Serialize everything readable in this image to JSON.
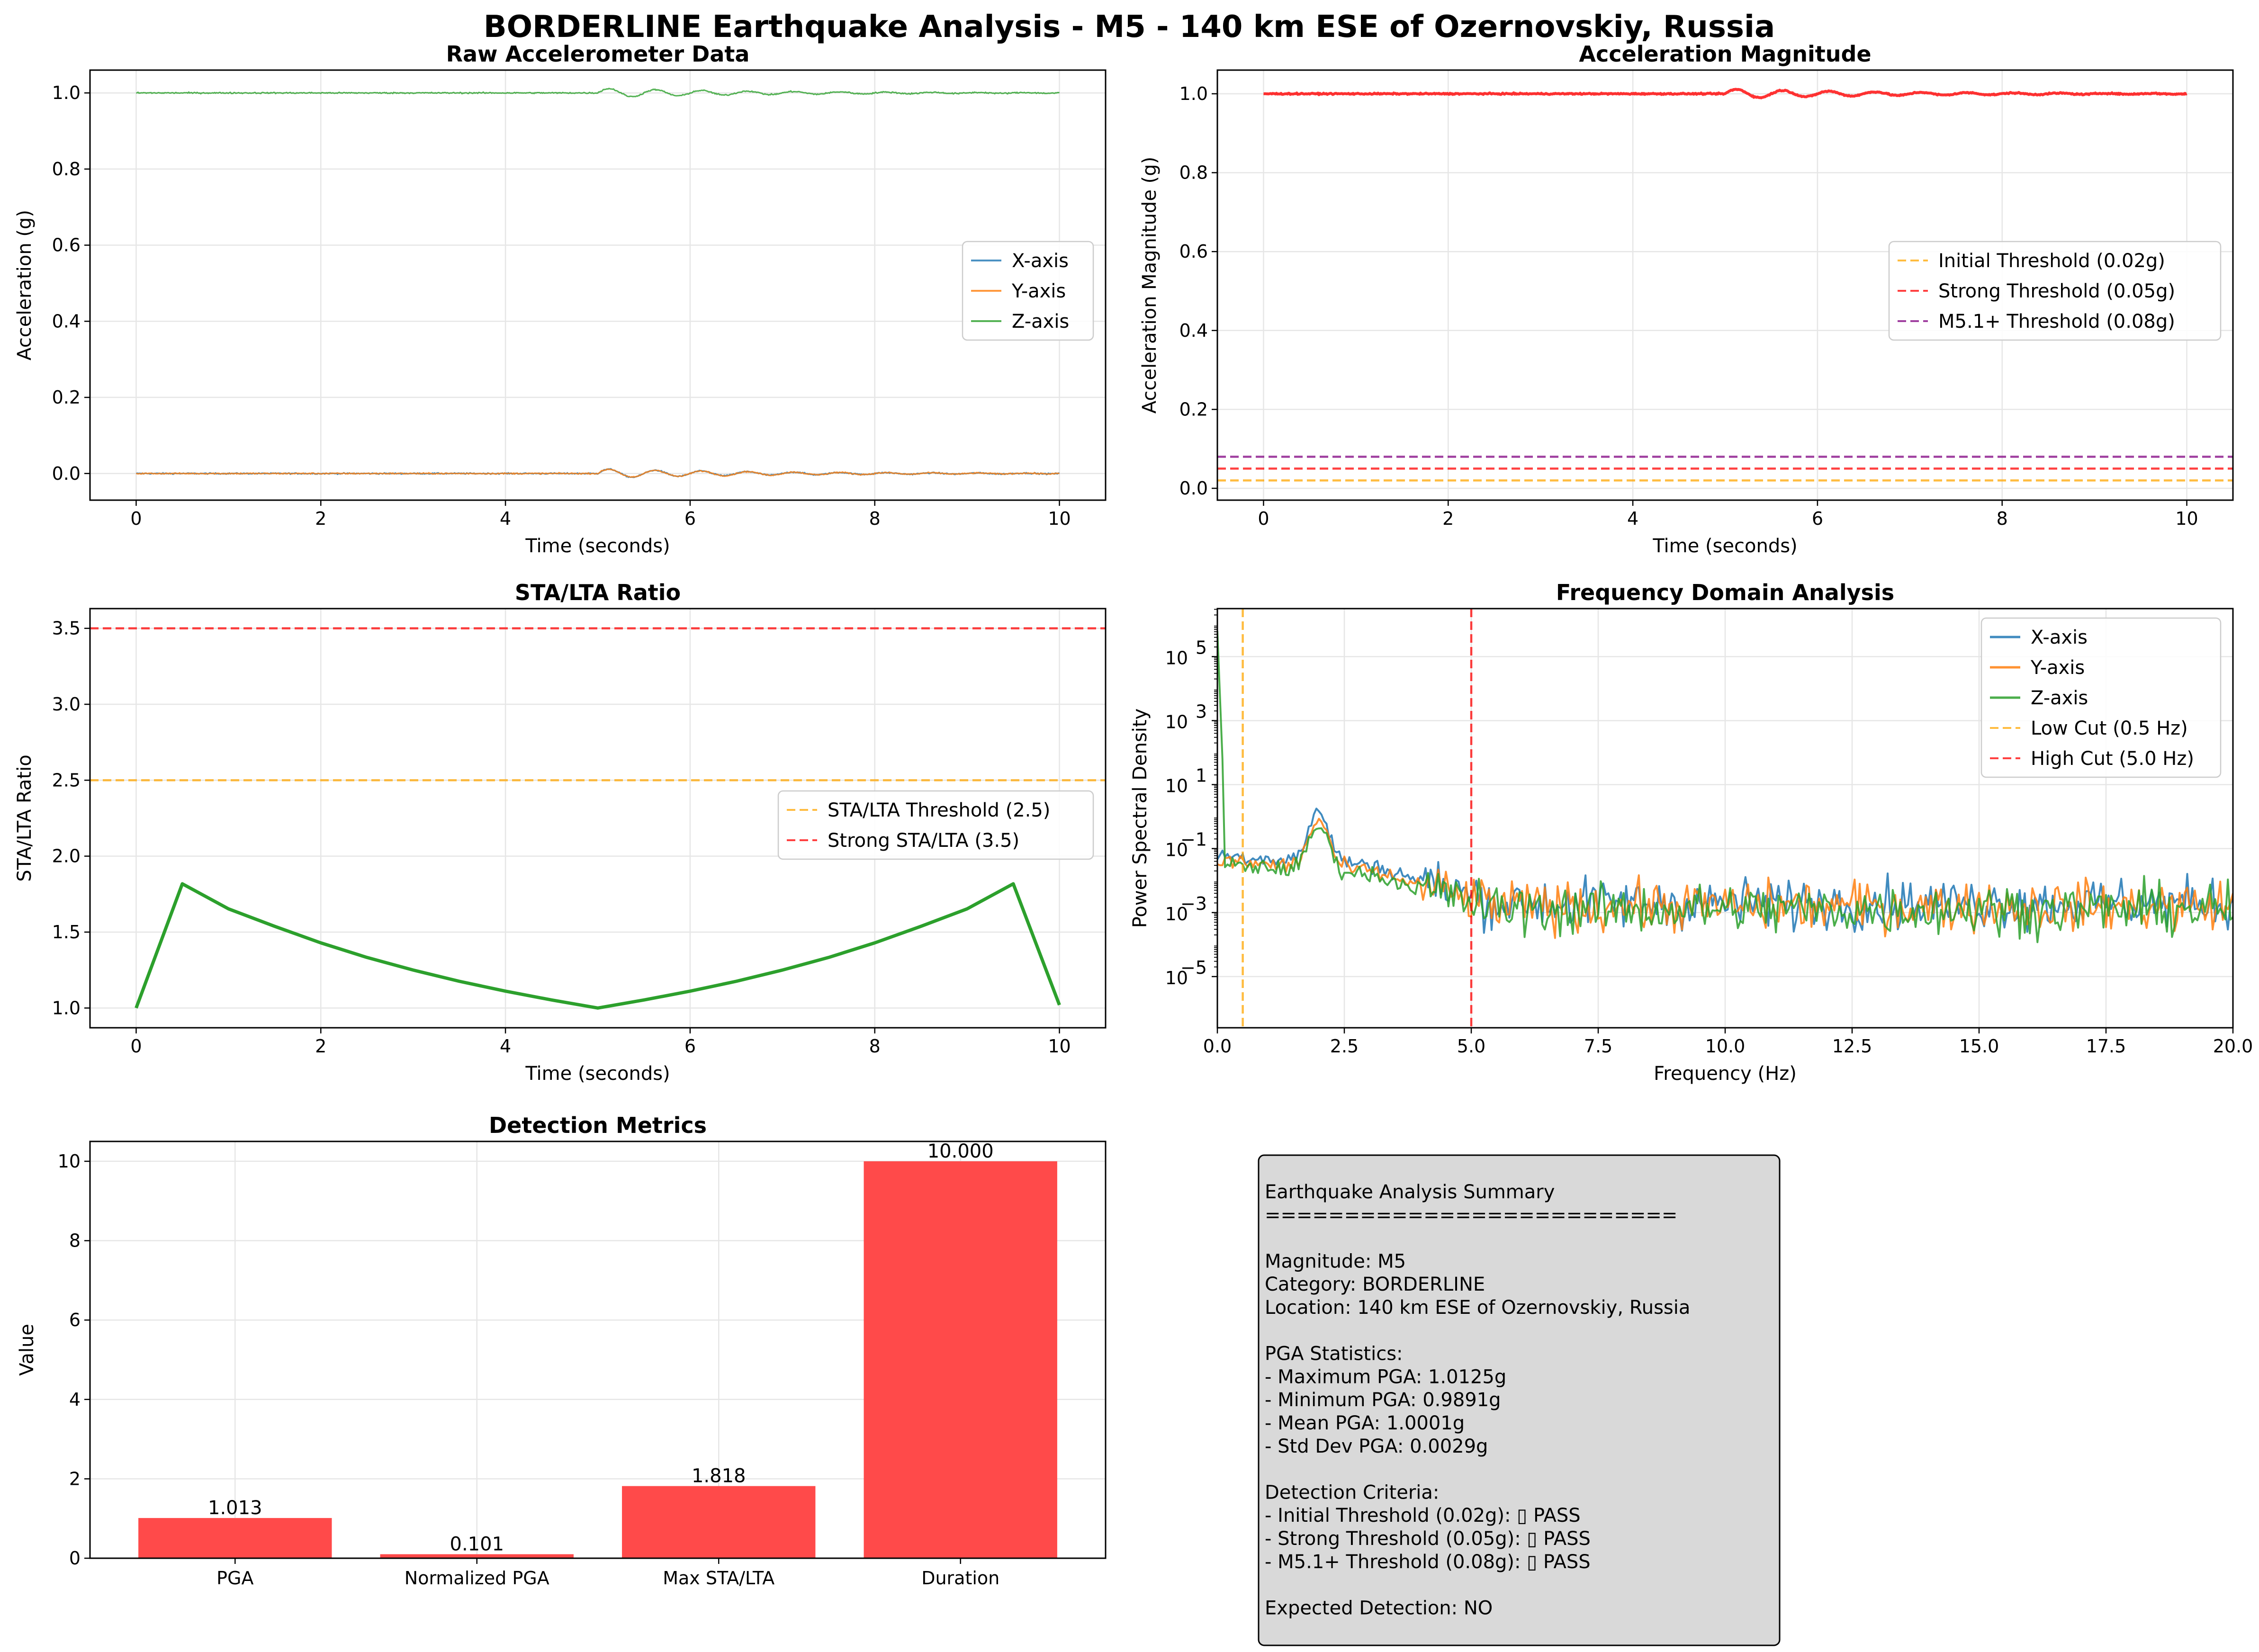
{
  "figure": {
    "title": "BORDERLINE Earthquake Analysis - M5 - 140 km ESE of Ozernovskiy, Russia"
  },
  "colors": {
    "x_axis": "#1f77b4",
    "y_axis": "#ff7f0e",
    "z_axis": "#2ca02c",
    "magnitude": "#ff0000",
    "threshold_initial": "#ffa500",
    "threshold_strong": "#ff0000",
    "threshold_m51": "#800080",
    "sta_lta_line": "#2ca02c",
    "bar": "#ff4a4a",
    "grid": "#e6e6e6",
    "summary_box": "#d9d9d9"
  },
  "chart_data": [
    {
      "id": "raw",
      "type": "line",
      "title": "Raw Accelerometer Data",
      "xlabel": "Time (seconds)",
      "ylabel": "Acceleration (g)",
      "xlim": [
        -0.5,
        10.5
      ],
      "ylim": [
        -0.07,
        1.06
      ],
      "xticks": [
        0,
        2,
        4,
        6,
        8,
        10
      ],
      "yticks": [
        0.0,
        0.2,
        0.4,
        0.6,
        0.8,
        1.0
      ],
      "xtick_labels": [
        "0",
        "2",
        "4",
        "6",
        "8",
        "10"
      ],
      "ytick_labels": [
        "0.0",
        "0.2",
        "0.4",
        "0.6",
        "0.8",
        "1.0"
      ],
      "grid": true,
      "legend_position": "center-right",
      "series": [
        {
          "name": "X-axis",
          "baseline": 0.0,
          "noise": 0.0012,
          "event_start": 5.0,
          "event_amplitude": 0.012,
          "event_decay": 0.55,
          "event_frequency_hz": 2.0
        },
        {
          "name": "Y-axis",
          "baseline": 0.0,
          "noise": 0.0012,
          "event_start": 5.0,
          "event_amplitude": 0.012,
          "event_decay": 0.55,
          "event_frequency_hz": 2.0
        },
        {
          "name": "Z-axis",
          "baseline": 1.0,
          "noise": 0.0012,
          "event_start": 5.0,
          "event_amplitude": 0.012,
          "event_decay": 0.55,
          "event_frequency_hz": 2.0
        }
      ]
    },
    {
      "id": "magnitude",
      "type": "line",
      "title": "Acceleration Magnitude",
      "xlabel": "Time (seconds)",
      "ylabel": "Acceleration Magnitude (g)",
      "xlim": [
        -0.5,
        10.5
      ],
      "ylim": [
        -0.03,
        1.06
      ],
      "xticks": [
        0,
        2,
        4,
        6,
        8,
        10
      ],
      "yticks": [
        0.0,
        0.2,
        0.4,
        0.6,
        0.8,
        1.0
      ],
      "xtick_labels": [
        "0",
        "2",
        "4",
        "6",
        "8",
        "10"
      ],
      "ytick_labels": [
        "0.0",
        "0.2",
        "0.4",
        "0.6",
        "0.8",
        "1.0"
      ],
      "grid": true,
      "legend_position": "center-right",
      "series": [
        {
          "name": "",
          "baseline": 1.0,
          "noise": 0.0012,
          "event_start": 5.0,
          "event_amplitude": 0.012,
          "event_decay": 0.55,
          "event_frequency_hz": 2.0
        }
      ],
      "thresholds": [
        {
          "name": "Initial Threshold (0.02g)",
          "value": 0.02,
          "color": "#ffa500"
        },
        {
          "name": "Strong Threshold (0.05g)",
          "value": 0.05,
          "color": "#ff0000"
        },
        {
          "name": "M5.1+ Threshold (0.08g)",
          "value": 0.08,
          "color": "#800080"
        }
      ]
    },
    {
      "id": "stalta",
      "type": "line",
      "title": "STA/LTA Ratio",
      "xlabel": "Time (seconds)",
      "ylabel": "STA/LTA Ratio",
      "xlim": [
        -0.5,
        10.5
      ],
      "ylim": [
        0.87,
        3.63
      ],
      "xticks": [
        0,
        2,
        4,
        6,
        8,
        10
      ],
      "yticks": [
        1.0,
        1.5,
        2.0,
        2.5,
        3.0,
        3.5
      ],
      "xtick_labels": [
        "0",
        "2",
        "4",
        "6",
        "8",
        "10"
      ],
      "ytick_labels": [
        "1.0",
        "1.5",
        "2.0",
        "2.5",
        "3.0",
        "3.5"
      ],
      "grid": true,
      "legend_position": "center-right",
      "series": [
        {
          "name": "",
          "x": [
            0,
            0.5,
            1,
            1.5,
            2,
            2.5,
            3,
            3.5,
            4,
            4.5,
            5,
            5.5,
            6,
            6.5,
            7,
            7.5,
            8,
            8.5,
            9,
            9.5,
            10
          ],
          "y": [
            1.0,
            1.818,
            1.653,
            1.538,
            1.429,
            1.333,
            1.25,
            1.176,
            1.111,
            1.053,
            1.0,
            1.053,
            1.111,
            1.176,
            1.25,
            1.333,
            1.429,
            1.538,
            1.653,
            1.818,
            1.02
          ]
        }
      ],
      "thresholds": [
        {
          "name": "STA/LTA Threshold (2.5)",
          "value": 2.5,
          "color": "#ffa500"
        },
        {
          "name": "Strong STA/LTA (3.5)",
          "value": 3.5,
          "color": "#ff0000"
        }
      ]
    },
    {
      "id": "freq",
      "type": "line",
      "title": "Frequency Domain Analysis",
      "xlabel": "Frequency (Hz)",
      "ylabel": "Power Spectral Density",
      "yscale": "log",
      "xlim": [
        0,
        20
      ],
      "ylim_log10": [
        -6.6,
        6.5
      ],
      "xticks": [
        0,
        2.5,
        5,
        7.5,
        10,
        12.5,
        15,
        17.5,
        20
      ],
      "xtick_labels": [
        "0.0",
        "2.5",
        "5.0",
        "7.5",
        "10.0",
        "12.5",
        "15.0",
        "17.5",
        "20.0"
      ],
      "ytick_exponents": [
        -5,
        -3,
        -1,
        1,
        3,
        5
      ],
      "ytick_labels": [
        "10",
        "10",
        "10",
        "10",
        "10",
        "10"
      ],
      "ytick_label_exponents": [
        "−5",
        "−3",
        "−1",
        "1",
        "3",
        "5"
      ],
      "grid": true,
      "legend_position": "top-right",
      "series": [
        {
          "name": "X-axis",
          "peak_freq_hz": 2.0,
          "peak_log10": 0.35,
          "low_band_log10": -1.2,
          "noise_floor_log10": -2.7
        },
        {
          "name": "Y-axis",
          "peak_freq_hz": 2.0,
          "peak_log10": 0.1,
          "low_band_log10": -1.4,
          "noise_floor_log10": -2.8
        },
        {
          "name": "Z-axis",
          "peak_freq_hz": 2.0,
          "peak_log10": -0.1,
          "low_band_log10": -1.5,
          "noise_floor_log10": -2.9,
          "dc_log10": 5.8
        }
      ],
      "vlines": [
        {
          "name": "Low Cut (0.5 Hz)",
          "value": 0.5,
          "color": "#ffa500"
        },
        {
          "name": "High Cut (5.0 Hz)",
          "value": 5.0,
          "color": "#ff0000"
        }
      ]
    },
    {
      "id": "metrics",
      "type": "bar",
      "title": "Detection Metrics",
      "xlabel": "",
      "ylabel": "Value",
      "ylim": [
        0,
        10.5
      ],
      "yticks": [
        0,
        2,
        4,
        6,
        8,
        10
      ],
      "ytick_labels": [
        "0",
        "2",
        "4",
        "6",
        "8",
        "10"
      ],
      "grid": true,
      "categories": [
        "PGA",
        "Normalized PGA",
        "Max STA/LTA",
        "Duration"
      ],
      "values": [
        1.013,
        0.101,
        1.818,
        10.0
      ],
      "value_labels": [
        "1.013",
        "0.101",
        "1.818",
        "10.000"
      ]
    }
  ],
  "summary": {
    "lines": [
      "Earthquake Analysis Summary",
      "==========================",
      "",
      "Magnitude: M5",
      "Category: BORDERLINE",
      "Location: 140 km ESE of Ozernovskiy, Russia",
      "",
      "PGA Statistics:",
      "- Maximum PGA: 1.0125g",
      "- Minimum PGA: 0.9891g",
      "- Mean PGA: 1.0001g",
      "- Std Dev PGA: 0.0029g",
      "",
      "Detection Criteria:",
      "- Initial Threshold (0.02g): ▯ PASS",
      "- Strong Threshold (0.05g): ▯ PASS",
      "- M5.1+ Threshold (0.08g): ▯ PASS",
      "",
      "Expected Detection: NO"
    ]
  }
}
